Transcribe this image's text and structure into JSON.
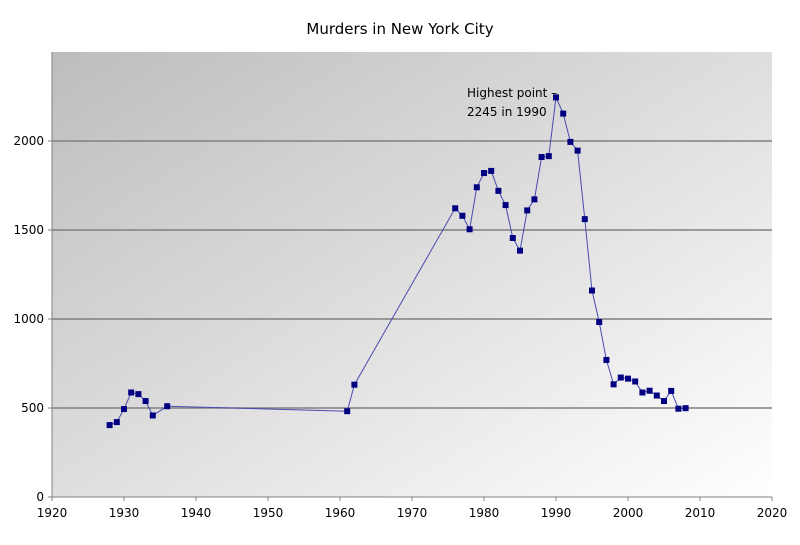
{
  "chart_data": {
    "type": "line",
    "title": "Murders in New York City",
    "xlabel": "",
    "ylabel": "",
    "xlim": [
      1920,
      2020
    ],
    "ylim": [
      0,
      2500
    ],
    "xticks": [
      1920,
      1930,
      1940,
      1950,
      1960,
      1970,
      1980,
      1990,
      2000,
      2010,
      2020
    ],
    "yticks": [
      0,
      500,
      1000,
      1500,
      2000
    ],
    "grid": "horizontal",
    "colors": {
      "series": "#000080",
      "line": "#4a4ab0",
      "grid": "#808080"
    },
    "series": [
      {
        "name": "Murders",
        "x": [
          1928,
          1929,
          1930,
          1931,
          1932,
          1933,
          1934,
          1936,
          1961,
          1962,
          1976,
          1977,
          1978,
          1979,
          1980,
          1981,
          1982,
          1983,
          1984,
          1985,
          1986,
          1987,
          1988,
          1989,
          1990,
          1991,
          1992,
          1993,
          1994,
          1995,
          1996,
          1997,
          1998,
          1999,
          2000,
          2001,
          2002,
          2003,
          2004,
          2005,
          2006,
          2007,
          2008
        ],
        "y": [
          404,
          421,
          494,
          587,
          578,
          539,
          458,
          510,
          482,
          631,
          1622,
          1580,
          1504,
          1740,
          1820,
          1832,
          1720,
          1640,
          1455,
          1384,
          1610,
          1672,
          1910,
          1915,
          2245,
          2154,
          1995,
          1946,
          1561,
          1160,
          983,
          770,
          633,
          671,
          665,
          649,
          587,
          597,
          570,
          539,
          596,
          496,
          499
        ]
      }
    ],
    "annotation": {
      "line1": "Highest point –",
      "line2": "2245 in 1990"
    }
  }
}
